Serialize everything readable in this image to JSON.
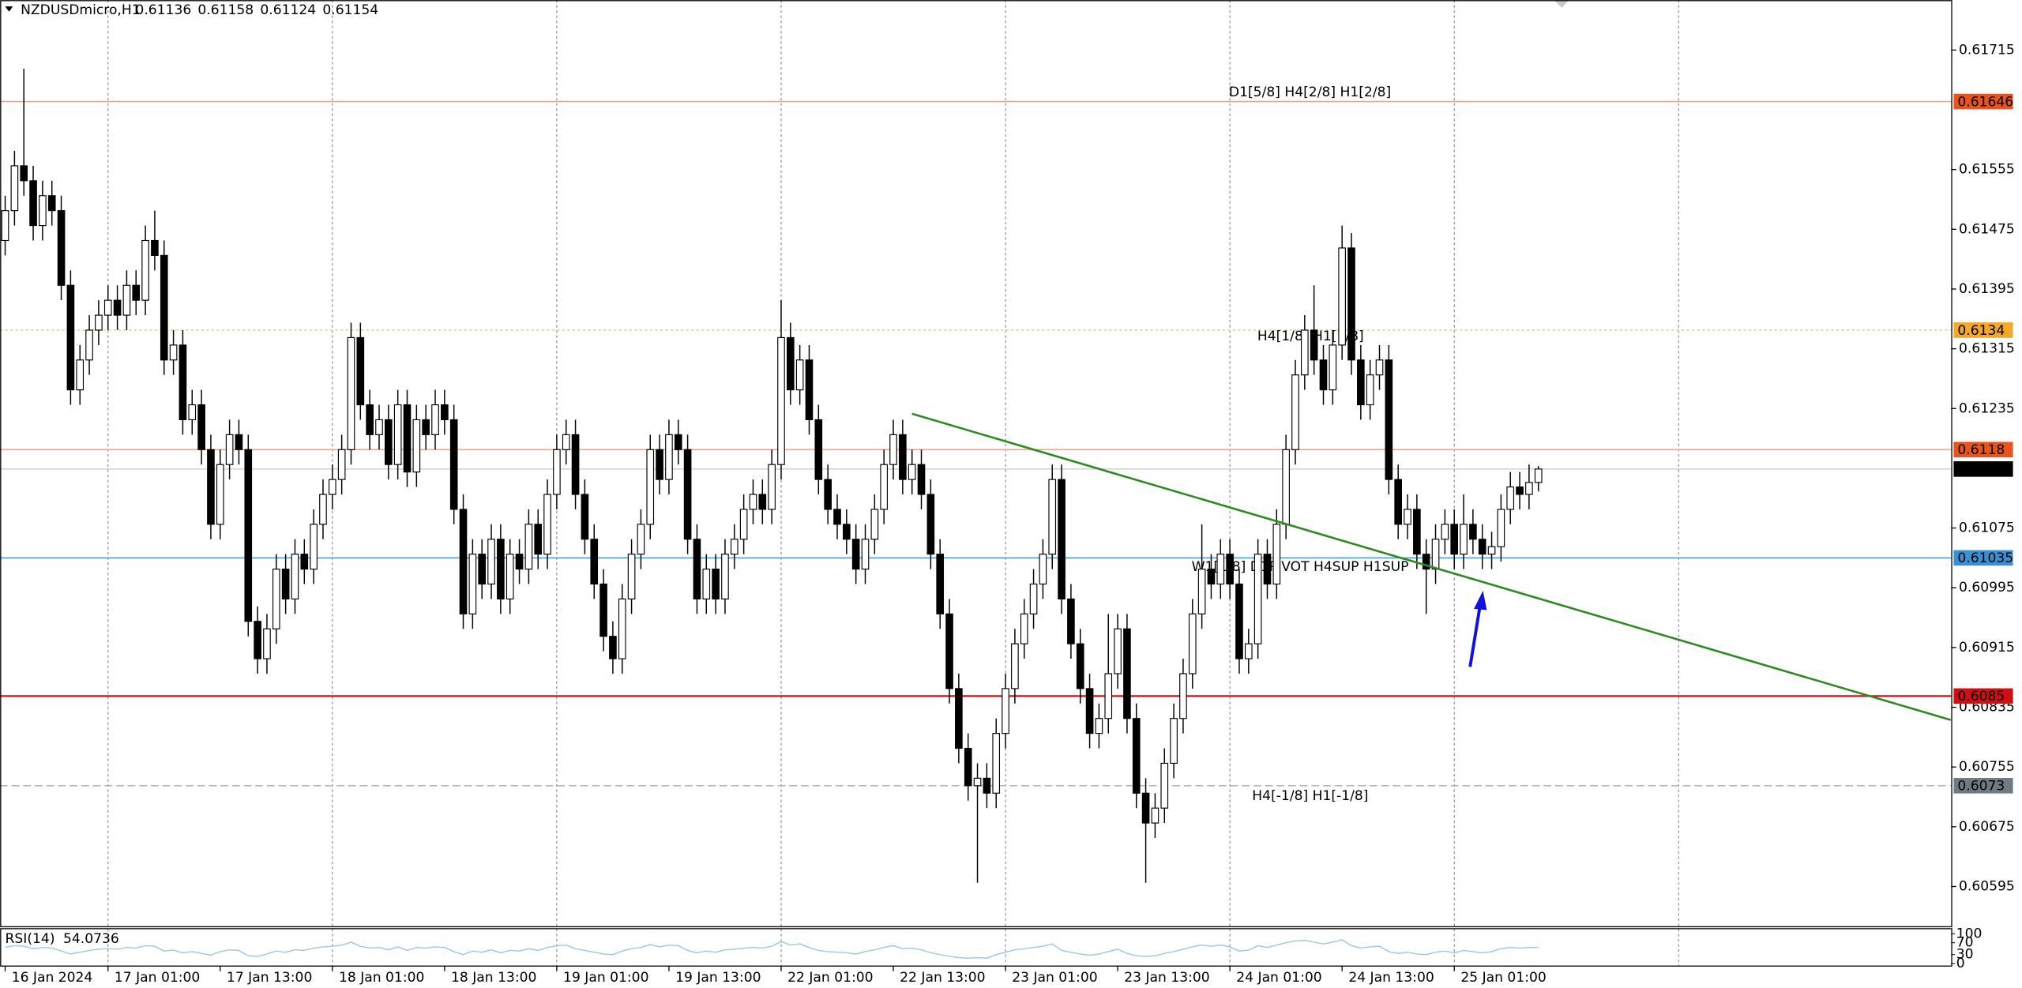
{
  "chart_data": {
    "type": "candlestick",
    "title": "NZDUSDmicro,H1",
    "open": [
      0.6146,
      0.615,
      0.6156,
      0.6154,
      0.6148,
      0.6152,
      0.615,
      0.614,
      0.6126,
      0.613,
      0.6134,
      0.6136,
      0.6138,
      0.6136,
      0.614,
      0.6138,
      0.6146,
      0.6144,
      0.613,
      0.6132,
      0.6122,
      0.6124,
      0.6118,
      0.6108,
      0.6116,
      0.612,
      0.6118,
      0.6095,
      0.609,
      0.6094,
      0.6102,
      0.6098,
      0.6104,
      0.6102,
      0.6108,
      0.6112,
      0.6114,
      0.6118,
      0.6133,
      0.6124,
      0.612,
      0.6122,
      0.6116,
      0.6124,
      0.6115,
      0.6122,
      0.612,
      0.6124,
      0.6122,
      0.611,
      0.6096,
      0.6104,
      0.61,
      0.6106,
      0.6098,
      0.6104,
      0.6102,
      0.6108,
      0.6104,
      0.6112,
      0.6118,
      0.612,
      0.6112,
      0.6106,
      0.61,
      0.6093,
      0.609,
      0.6098,
      0.6104,
      0.6108,
      0.6118,
      0.6114,
      0.612,
      0.6118,
      0.6106,
      0.6098,
      0.6102,
      0.6098,
      0.6104,
      0.6106,
      0.611,
      0.6112,
      0.611,
      0.6116,
      0.6133,
      0.6126,
      0.613,
      0.6122,
      0.6114,
      0.611,
      0.6108,
      0.6106,
      0.6102,
      0.6106,
      0.611,
      0.6116,
      0.612,
      0.6114,
      0.6116,
      0.6112,
      0.6104,
      0.6096,
      0.6086,
      0.6078,
      0.6073,
      0.6074,
      0.6072,
      0.608,
      0.6086,
      0.6092,
      0.6096,
      0.61,
      0.6104,
      0.6114,
      0.6098,
      0.6092,
      0.6086,
      0.608,
      0.6082,
      0.6088,
      0.6094,
      0.6082,
      0.6072,
      0.6068,
      0.607,
      0.6076,
      0.6082,
      0.6088,
      0.6096,
      0.6102,
      0.61,
      0.6104,
      0.61,
      0.609,
      0.6092,
      0.6104,
      0.61,
      0.6108,
      0.6118,
      0.6128,
      0.6134,
      0.613,
      0.6126,
      0.6132,
      0.6145,
      0.613,
      0.6124,
      0.6128,
      0.613,
      0.6114,
      0.6108,
      0.611,
      0.6104,
      0.6102,
      0.6106,
      0.6108,
      0.6104,
      0.6108,
      0.6106,
      0.6104,
      0.6105,
      0.611,
      0.6113,
      0.6112,
      0.61136
    ],
    "high": [
      0.6152,
      0.6158,
      0.6169,
      0.6156,
      0.6154,
      0.6154,
      0.6152,
      0.6142,
      0.6132,
      0.6136,
      0.6138,
      0.614,
      0.614,
      0.6142,
      0.6142,
      0.6148,
      0.615,
      0.6146,
      0.6134,
      0.6134,
      0.6126,
      0.6126,
      0.612,
      0.6118,
      0.6122,
      0.6122,
      0.612,
      0.6097,
      0.6096,
      0.6104,
      0.6104,
      0.6106,
      0.6106,
      0.611,
      0.6114,
      0.6116,
      0.612,
      0.6135,
      0.6135,
      0.6126,
      0.6124,
      0.6124,
      0.6126,
      0.6126,
      0.6124,
      0.6124,
      0.6126,
      0.6126,
      0.6124,
      0.6112,
      0.6106,
      0.6106,
      0.6108,
      0.6108,
      0.6106,
      0.6106,
      0.611,
      0.611,
      0.6114,
      0.612,
      0.6122,
      0.6122,
      0.6114,
      0.6108,
      0.6102,
      0.6095,
      0.61,
      0.6106,
      0.611,
      0.612,
      0.612,
      0.6122,
      0.6122,
      0.612,
      0.6108,
      0.6104,
      0.6104,
      0.6106,
      0.6108,
      0.6112,
      0.6114,
      0.6114,
      0.6118,
      0.6138,
      0.6135,
      0.6132,
      0.6132,
      0.6124,
      0.6116,
      0.6112,
      0.611,
      0.6108,
      0.6108,
      0.6112,
      0.6118,
      0.6122,
      0.6122,
      0.6118,
      0.6118,
      0.6114,
      0.6106,
      0.6098,
      0.6088,
      0.608,
      0.6076,
      0.6076,
      0.6082,
      0.6088,
      0.6094,
      0.6098,
      0.6102,
      0.6106,
      0.6116,
      0.6116,
      0.61,
      0.6094,
      0.6088,
      0.6084,
      0.6096,
      0.6096,
      0.6096,
      0.6084,
      0.6074,
      0.6072,
      0.6078,
      0.6084,
      0.609,
      0.6098,
      0.6108,
      0.6104,
      0.6106,
      0.6106,
      0.6102,
      0.6094,
      0.6106,
      0.6106,
      0.611,
      0.612,
      0.613,
      0.6136,
      0.614,
      0.6132,
      0.6134,
      0.6148,
      0.6147,
      0.6132,
      0.613,
      0.6132,
      0.6132,
      0.6116,
      0.6112,
      0.6112,
      0.6106,
      0.6108,
      0.611,
      0.611,
      0.6112,
      0.611,
      0.6108,
      0.6107,
      0.6112,
      0.6115,
      0.6115,
      0.6116,
      0.61158
    ],
    "low": [
      0.6144,
      0.6148,
      0.6152,
      0.6146,
      0.6146,
      0.6148,
      0.6138,
      0.6124,
      0.6124,
      0.6128,
      0.6132,
      0.6134,
      0.6134,
      0.6134,
      0.6136,
      0.6136,
      0.6142,
      0.6128,
      0.6128,
      0.612,
      0.612,
      0.6116,
      0.6106,
      0.6106,
      0.6114,
      0.6116,
      0.6093,
      0.6088,
      0.6088,
      0.6092,
      0.6096,
      0.6096,
      0.61,
      0.61,
      0.6106,
      0.611,
      0.6112,
      0.6116,
      0.6122,
      0.6118,
      0.6118,
      0.6114,
      0.6114,
      0.6113,
      0.6113,
      0.6118,
      0.6118,
      0.612,
      0.6108,
      0.6094,
      0.6094,
      0.6098,
      0.6098,
      0.6096,
      0.6096,
      0.61,
      0.61,
      0.6102,
      0.6102,
      0.611,
      0.6116,
      0.611,
      0.6104,
      0.6098,
      0.6091,
      0.6088,
      0.6088,
      0.6096,
      0.6102,
      0.6106,
      0.6112,
      0.6112,
      0.6116,
      0.6104,
      0.6096,
      0.6096,
      0.6096,
      0.6096,
      0.6102,
      0.6104,
      0.6108,
      0.6108,
      0.6108,
      0.6114,
      0.6124,
      0.6124,
      0.612,
      0.6112,
      0.6108,
      0.6106,
      0.6104,
      0.61,
      0.61,
      0.6104,
      0.6108,
      0.6114,
      0.6112,
      0.6112,
      0.611,
      0.6102,
      0.6094,
      0.6084,
      0.6076,
      0.6071,
      0.606,
      0.607,
      0.607,
      0.6078,
      0.6084,
      0.609,
      0.6094,
      0.6098,
      0.6102,
      0.6096,
      0.609,
      0.6084,
      0.6078,
      0.6078,
      0.608,
      0.6086,
      0.608,
      0.607,
      0.606,
      0.6066,
      0.6068,
      0.6074,
      0.608,
      0.6086,
      0.6094,
      0.6098,
      0.6098,
      0.6098,
      0.6088,
      0.6088,
      0.609,
      0.6098,
      0.6098,
      0.6106,
      0.6116,
      0.6126,
      0.6128,
      0.6124,
      0.6124,
      0.613,
      0.6128,
      0.6122,
      0.6122,
      0.6126,
      0.6112,
      0.6106,
      0.6106,
      0.6102,
      0.6096,
      0.61,
      0.6104,
      0.6102,
      0.6102,
      0.6104,
      0.6102,
      0.6102,
      0.6103,
      0.6108,
      0.611,
      0.611,
      0.61124
    ],
    "close": [
      0.615,
      0.6156,
      0.6154,
      0.6148,
      0.6152,
      0.615,
      0.614,
      0.6126,
      0.613,
      0.6134,
      0.6136,
      0.6138,
      0.6136,
      0.614,
      0.6138,
      0.6146,
      0.6144,
      0.613,
      0.6132,
      0.6122,
      0.6124,
      0.6118,
      0.6108,
      0.6116,
      0.612,
      0.6118,
      0.6095,
      0.609,
      0.6094,
      0.6102,
      0.6098,
      0.6104,
      0.6102,
      0.6108,
      0.6112,
      0.6114,
      0.6118,
      0.6133,
      0.6124,
      0.612,
      0.6122,
      0.6116,
      0.6124,
      0.6115,
      0.6122,
      0.612,
      0.6124,
      0.6122,
      0.611,
      0.6096,
      0.6104,
      0.61,
      0.6106,
      0.6098,
      0.6104,
      0.6102,
      0.6108,
      0.6104,
      0.6112,
      0.6118,
      0.612,
      0.6112,
      0.6106,
      0.61,
      0.6093,
      0.609,
      0.6098,
      0.6104,
      0.6108,
      0.6118,
      0.6114,
      0.612,
      0.6118,
      0.6106,
      0.6098,
      0.6102,
      0.6098,
      0.6104,
      0.6106,
      0.611,
      0.6112,
      0.611,
      0.6116,
      0.6133,
      0.6126,
      0.613,
      0.6122,
      0.6114,
      0.611,
      0.6108,
      0.6106,
      0.6102,
      0.6106,
      0.611,
      0.6116,
      0.612,
      0.6114,
      0.6116,
      0.6112,
      0.6104,
      0.6096,
      0.6086,
      0.6078,
      0.6073,
      0.6074,
      0.6072,
      0.608,
      0.6086,
      0.6092,
      0.6096,
      0.61,
      0.6104,
      0.6114,
      0.6098,
      0.6092,
      0.6086,
      0.608,
      0.6082,
      0.6088,
      0.6094,
      0.6082,
      0.6072,
      0.6068,
      0.607,
      0.6076,
      0.6082,
      0.6088,
      0.6096,
      0.6102,
      0.61,
      0.6104,
      0.61,
      0.609,
      0.6092,
      0.6104,
      0.61,
      0.6108,
      0.6118,
      0.6128,
      0.6134,
      0.613,
      0.6126,
      0.6132,
      0.6145,
      0.613,
      0.6124,
      0.6128,
      0.613,
      0.6114,
      0.6108,
      0.611,
      0.6104,
      0.6102,
      0.6106,
      0.6108,
      0.6104,
      0.6108,
      0.6106,
      0.6104,
      0.6105,
      0.611,
      0.6113,
      0.6112,
      0.61136,
      0.61154
    ],
    "xlim": [
      -0.552,
      208.14
    ],
    "xticks": [
      {
        "value": 0,
        "label": "16 Jan 2024"
      },
      {
        "value": 11,
        "label": "17 Jan 01:00"
      },
      {
        "value": 23,
        "label": "17 Jan 13:00"
      },
      {
        "value": 35,
        "label": "18 Jan 01:00"
      },
      {
        "value": 47,
        "label": "18 Jan 13:00"
      },
      {
        "value": 59,
        "label": "19 Jan 01:00"
      },
      {
        "value": 71,
        "label": "19 Jan 13:00"
      },
      {
        "value": 83,
        "label": "22 Jan 01:00"
      },
      {
        "value": 95,
        "label": "22 Jan 13:00"
      },
      {
        "value": 107,
        "label": "23 Jan 01:00"
      },
      {
        "value": 119,
        "label": "23 Jan 13:00"
      },
      {
        "value": 131,
        "label": "24 Jan 01:00"
      },
      {
        "value": 143,
        "label": "24 Jan 13:00"
      },
      {
        "value": 155,
        "label": "25 Jan 01:00"
      }
    ],
    "xgrid": [
      11,
      35,
      59,
      83,
      107,
      131,
      155,
      179
    ],
    "ylim": [
      0.60542,
      0.61782
    ],
    "yticks": [
      0.61715,
      0.61555,
      0.61475,
      0.61395,
      0.61315,
      0.61235,
      0.61075,
      0.60995,
      0.60915,
      0.60835,
      0.60755,
      0.60675,
      0.60595
    ],
    "levels": [
      {
        "value": 0.61646,
        "color": "#eaa690",
        "label_color": "#e8541c",
        "style": "solid",
        "text": "D1[5/8] H4[2/8] H1[2/8]",
        "text_color": "#e0642c"
      },
      {
        "value": 0.6134,
        "color": "#e8d48a",
        "label_color": "#f4a82a",
        "style": "dotted",
        "text": "H4[1/8] H1[1/8]",
        "text_color": "#e3a628"
      },
      {
        "value": 0.6118,
        "color": "#eaa690",
        "label_color": "#e8541c",
        "style": "solid"
      },
      {
        "value": 0.61035,
        "color": "#4a9fd8",
        "label_color": "#3a90d0",
        "style": "solid",
        "text": "W1[1/8] D1PIVOT H4SUP H1SUP",
        "text_color": "#4a9fd8"
      },
      {
        "value": 0.6085,
        "color": "#d01010",
        "label_color": "#d01010",
        "style": "solid"
      },
      {
        "value": 0.6073,
        "color": "#b4b4b4",
        "label_color": "#707a84",
        "style": "dashed",
        "text": "H4[-1/8] H1[-1/8]",
        "text_color": "#8a96a4"
      }
    ],
    "trendline": {
      "x": [
        97,
        208.1
      ],
      "y": [
        0.61228,
        0.60818
      ],
      "color": "#2e8b22"
    },
    "rsi": {
      "name": "RSI(14)",
      "color": "#9ec6e6",
      "ylim": [
        0,
        100
      ],
      "yticks": [
        100,
        70,
        30,
        0
      ],
      "values": [
        55,
        60,
        58,
        50,
        54,
        52,
        42,
        32,
        38,
        44,
        48,
        50,
        48,
        54,
        52,
        60,
        58,
        42,
        45,
        36,
        40,
        34,
        28,
        40,
        46,
        44,
        26,
        24,
        32,
        42,
        38,
        46,
        44,
        52,
        56,
        58,
        62,
        72,
        58,
        52,
        54,
        46,
        56,
        44,
        54,
        52,
        56,
        54,
        40,
        30,
        42,
        38,
        46,
        36,
        44,
        42,
        50,
        44,
        54,
        60,
        62,
        50,
        44,
        38,
        32,
        30,
        42,
        50,
        54,
        64,
        56,
        62,
        60,
        44,
        36,
        42,
        38,
        46,
        48,
        52,
        54,
        52,
        58,
        74,
        62,
        66,
        54,
        44,
        40,
        38,
        36,
        32,
        40,
        46,
        54,
        60,
        50,
        52,
        46,
        36,
        30,
        24,
        20,
        18,
        20,
        18,
        30,
        38,
        46,
        50,
        54,
        58,
        66,
        44,
        38,
        32,
        28,
        32,
        40,
        48,
        34,
        26,
        24,
        26,
        34,
        40,
        48,
        56,
        62,
        58,
        62,
        56,
        42,
        45,
        60,
        54,
        62,
        70,
        76,
        78,
        72,
        66,
        72,
        80,
        60,
        52,
        56,
        58,
        40,
        34,
        38,
        32,
        30,
        38,
        42,
        36,
        44,
        40,
        36,
        40,
        50,
        54,
        52,
        54,
        54.0736
      ]
    }
  }
}
